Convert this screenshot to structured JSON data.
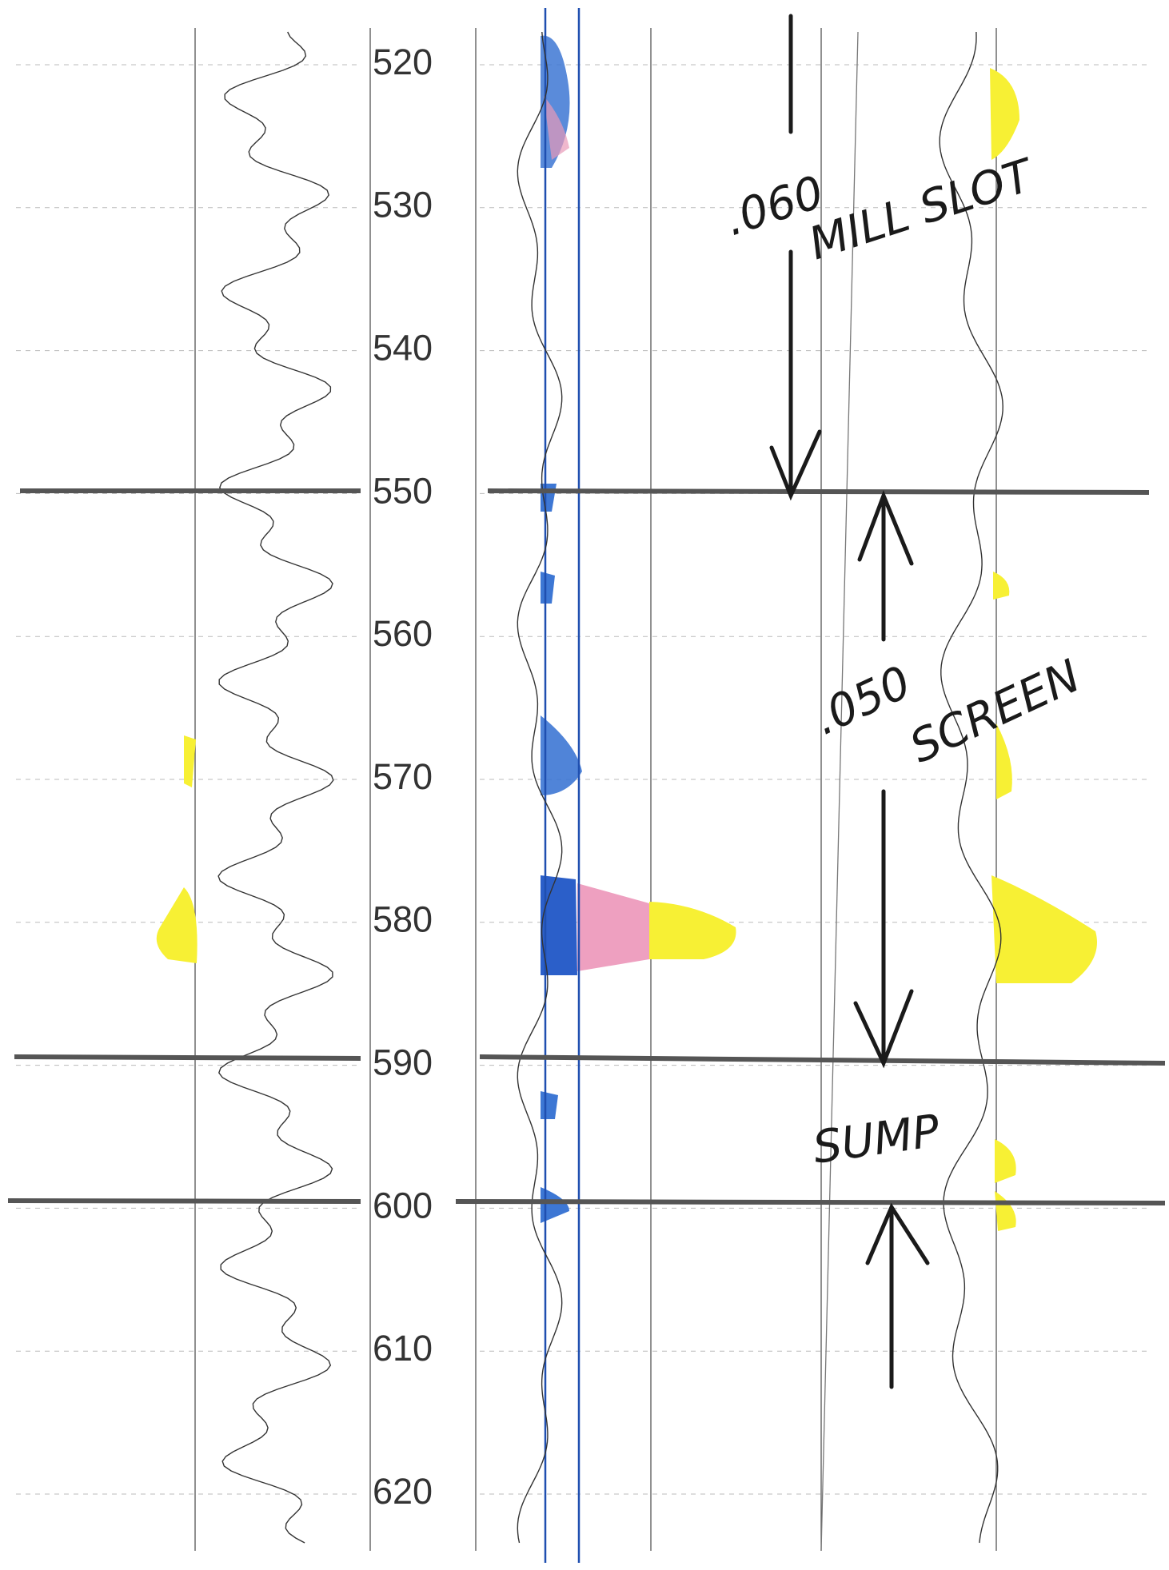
{
  "depth_track": {
    "ticks": [
      520,
      530,
      540,
      550,
      560,
      570,
      580,
      590,
      600,
      610,
      620
    ]
  },
  "annotations": {
    "mill_slot": {
      "size": ".060",
      "label": "MILL SLOT"
    },
    "screen": {
      "size": ".050",
      "label": "SCREEN"
    },
    "sump": {
      "label": "SUMP"
    }
  }
}
